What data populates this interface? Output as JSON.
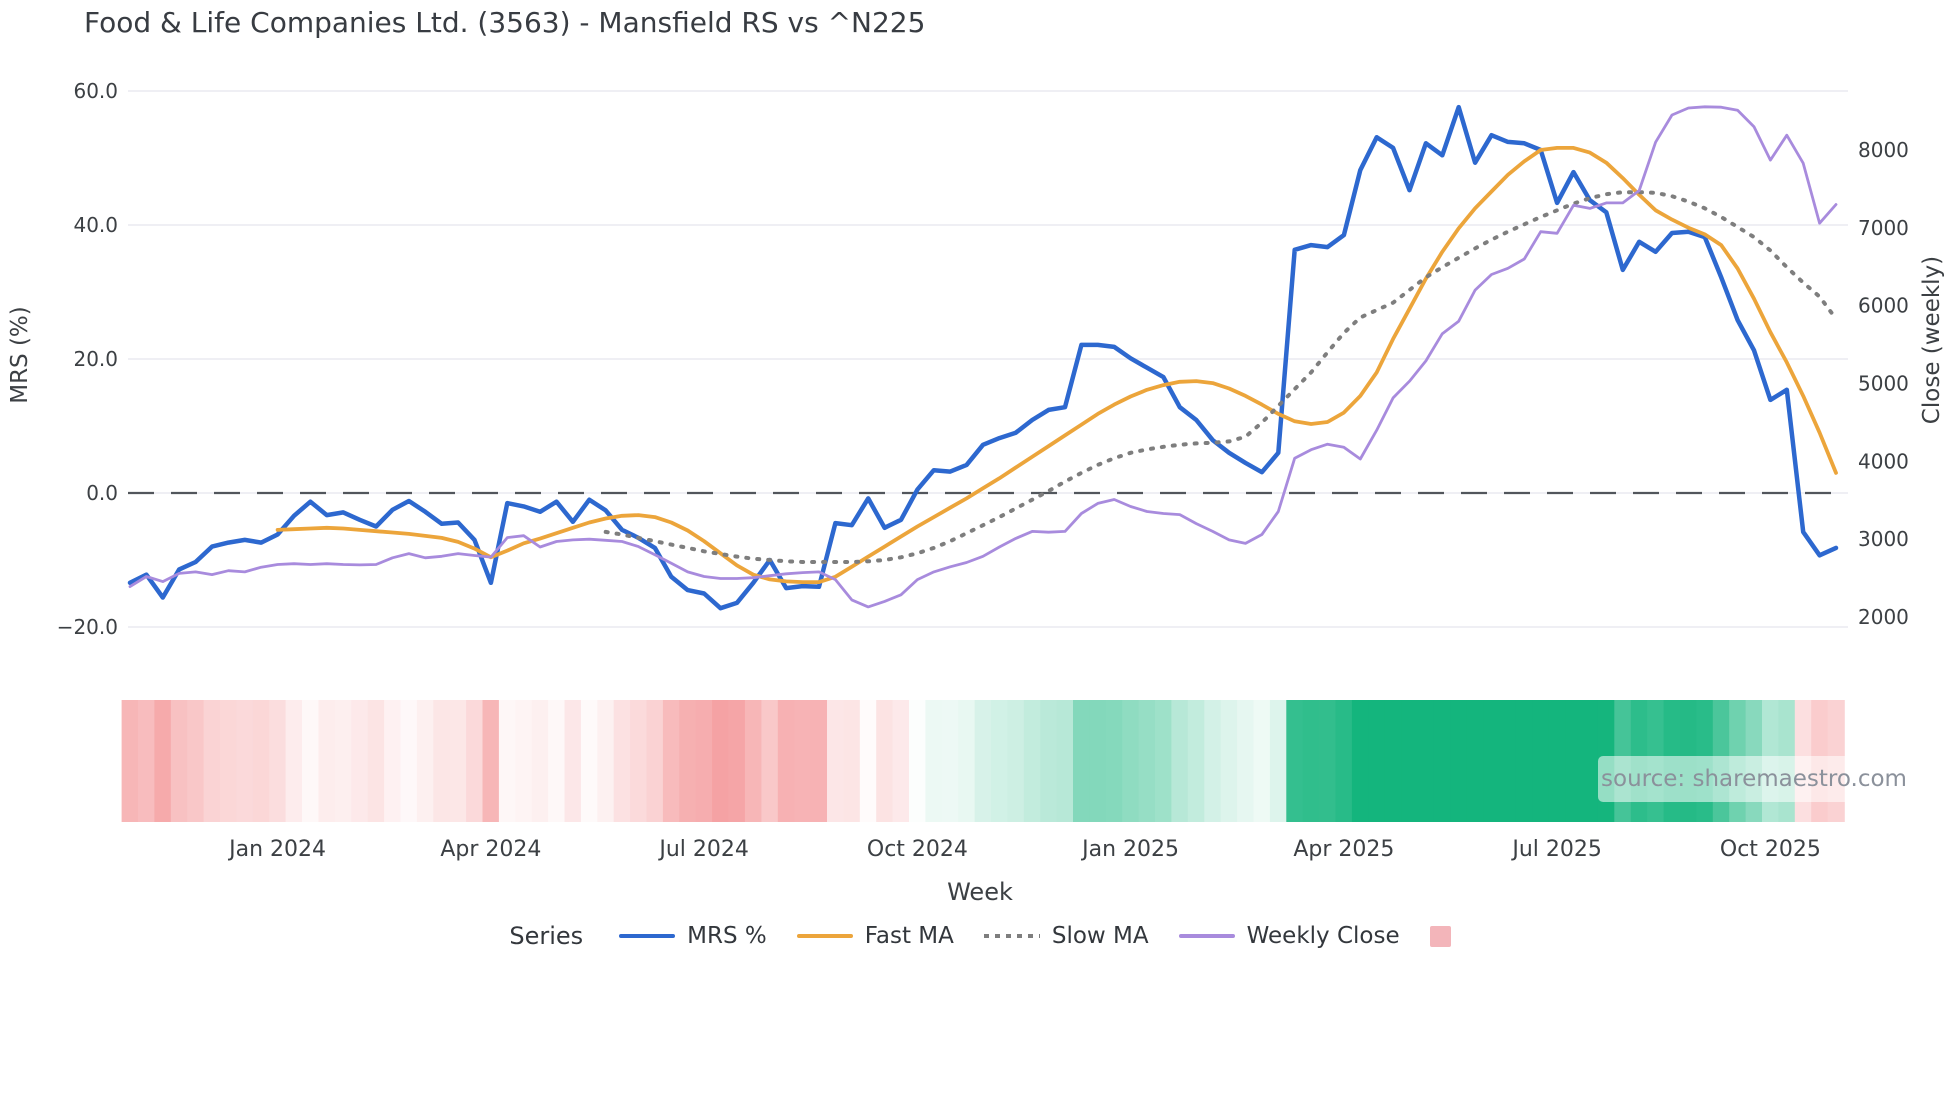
{
  "title": "Food & Life Companies Ltd. (3563) - Mansfield RS vs ^N225",
  "watermark": "source: sharemaestro.com",
  "axes": {
    "y_left": {
      "label": "MRS (%)",
      "ticks": [
        "60.0",
        "40.0",
        "20.0",
        "0.0",
        "−20.0"
      ],
      "tick_values": [
        60,
        40,
        20,
        0,
        -20
      ]
    },
    "y_right": {
      "label": "Close (weekly)",
      "ticks": [
        "8000",
        "7000",
        "6000",
        "5000",
        "4000",
        "3000",
        "2000"
      ],
      "tick_values": [
        8000,
        7000,
        6000,
        5000,
        4000,
        3000,
        2000
      ]
    },
    "x": {
      "label": "Week",
      "ticks": [
        "Jan 2024",
        "Apr 2024",
        "Jul 2024",
        "Oct 2024",
        "Jan 2025",
        "Apr 2025",
        "Jul 2025",
        "Oct 2025"
      ],
      "tick_week_indices": [
        9,
        22,
        35,
        48,
        61,
        74,
        87,
        100
      ]
    }
  },
  "legend": {
    "title": "Series",
    "items": [
      {
        "label": "MRS %",
        "color": "#2d68cf",
        "style": "solid"
      },
      {
        "label": "Fast MA",
        "color": "#eca53b",
        "style": "solid"
      },
      {
        "label": "Slow MA",
        "color": "#7e7e7e",
        "style": "dotted"
      },
      {
        "label": "Weekly Close",
        "color": "#a88bdd",
        "style": "solid"
      },
      {
        "label": "",
        "color": "#f3b5ba",
        "style": "square"
      }
    ]
  },
  "chart_data": {
    "type": "line",
    "x_start_week": "2023-10-30",
    "x_freq": "weekly",
    "n_points": 105,
    "grid": "horizontal-only",
    "y_left_range": [
      -20,
      60
    ],
    "y_right_range": [
      2000,
      8000
    ],
    "zero_reference_line": 0,
    "series": [
      {
        "name": "MRS %",
        "axis": "left",
        "color": "#2d68cf",
        "width": 4.5,
        "dash": "solid",
        "values": [
          -13.4,
          -12.2,
          -15.6,
          -11.4,
          -10.3,
          -8.0,
          -7.4,
          -7.0,
          -7.4,
          -6.2,
          -3.4,
          -1.3,
          -3.3,
          -2.9,
          -4.0,
          -5.0,
          -2.5,
          -1.2,
          -2.8,
          -4.6,
          -4.4,
          -7.0,
          -13.4,
          -1.5,
          -2.0,
          -2.8,
          -1.3,
          -4.3,
          -1.0,
          -2.6,
          -5.5,
          -6.7,
          -8.2,
          -12.5,
          -14.5,
          -15.0,
          -17.2,
          -16.4,
          -13.4,
          -10.0,
          -14.2,
          -13.9,
          -14.0,
          -4.5,
          -4.8,
          -0.8,
          -5.2,
          -4.0,
          0.5,
          3.4,
          3.2,
          4.2,
          7.2,
          8.2,
          9.0,
          10.9,
          12.4,
          12.8,
          22.1,
          22.1,
          21.8,
          20.1,
          18.7,
          17.3,
          12.8,
          10.9,
          7.9,
          6.0,
          4.5,
          3.1,
          6.0,
          36.3,
          37.0,
          36.7,
          38.5,
          48.2,
          53.1,
          51.5,
          45.2,
          52.2,
          50.4,
          57.6,
          49.3,
          53.4,
          52.4,
          52.2,
          51.2,
          43.3,
          47.9,
          43.7,
          41.9,
          33.3,
          37.5,
          36.0,
          38.8,
          39.0,
          38.2,
          32.2,
          25.8,
          21.3,
          13.9,
          15.4,
          -5.8,
          -9.3,
          -8.2
        ]
      },
      {
        "name": "Fast MA",
        "axis": "left",
        "color": "#eca53b",
        "width": 3.8,
        "dash": "solid",
        "values": [
          null,
          null,
          null,
          null,
          null,
          null,
          null,
          null,
          null,
          -5.5,
          -5.4,
          -5.3,
          -5.2,
          -5.3,
          -5.5,
          -5.7,
          -5.9,
          -6.1,
          -6.4,
          -6.7,
          -7.3,
          -8.3,
          -9.6,
          -8.6,
          -7.5,
          -6.8,
          -6.0,
          -5.2,
          -4.4,
          -3.8,
          -3.4,
          -3.3,
          -3.6,
          -4.4,
          -5.6,
          -7.2,
          -9.0,
          -10.8,
          -12.2,
          -12.9,
          -13.2,
          -13.3,
          -13.3,
          -12.5,
          -11.0,
          -9.5,
          -8.0,
          -6.5,
          -5.0,
          -3.6,
          -2.2,
          -0.8,
          0.7,
          2.2,
          3.8,
          5.4,
          7.0,
          8.6,
          10.2,
          11.8,
          13.2,
          14.4,
          15.4,
          16.1,
          16.6,
          16.7,
          16.4,
          15.6,
          14.5,
          13.2,
          11.8,
          10.7,
          10.3,
          10.6,
          12.0,
          14.5,
          18.0,
          23.0,
          27.5,
          32.0,
          36.0,
          39.5,
          42.5,
          45.0,
          47.5,
          49.5,
          51.2,
          51.5,
          51.5,
          50.8,
          49.3,
          47.0,
          44.5,
          42.2,
          40.8,
          39.6,
          38.6,
          37.0,
          33.5,
          29.0,
          24.0,
          19.5,
          14.5,
          9.0,
          3.0
        ]
      },
      {
        "name": "Slow MA",
        "axis": "left",
        "color": "#7e7e7e",
        "width": 4,
        "dash": "dotted",
        "values": [
          null,
          null,
          null,
          null,
          null,
          null,
          null,
          null,
          null,
          null,
          null,
          null,
          null,
          null,
          null,
          null,
          null,
          null,
          null,
          null,
          null,
          null,
          null,
          null,
          null,
          null,
          null,
          null,
          null,
          -5.8,
          -6.2,
          -6.7,
          -7.2,
          -7.7,
          -8.2,
          -8.7,
          -9.1,
          -9.5,
          -9.8,
          -10.0,
          -10.2,
          -10.3,
          -10.3,
          -10.3,
          -10.3,
          -10.2,
          -10.0,
          -9.6,
          -9.0,
          -8.2,
          -7.2,
          -6.0,
          -4.8,
          -3.6,
          -2.3,
          -1.0,
          0.3,
          1.7,
          3.0,
          4.2,
          5.2,
          6.0,
          6.5,
          6.9,
          7.2,
          7.4,
          7.5,
          7.7,
          8.4,
          10.5,
          13.0,
          15.5,
          18.0,
          21.0,
          23.9,
          26.2,
          27.3,
          28.4,
          30.3,
          32.2,
          33.7,
          35.1,
          36.5,
          37.8,
          39.0,
          40.1,
          41.2,
          42.2,
          43.2,
          44.0,
          44.6,
          44.9,
          44.9,
          44.8,
          44.3,
          43.5,
          42.5,
          41.2,
          39.7,
          38.2,
          36.2,
          33.7,
          31.4,
          29.3,
          26.0
        ]
      },
      {
        "name": "Weekly Close",
        "axis": "right",
        "color": "#a88bdd",
        "width": 2.8,
        "dash": "solid",
        "values": [
          2390,
          2520,
          2455,
          2560,
          2580,
          2545,
          2595,
          2580,
          2640,
          2675,
          2685,
          2675,
          2685,
          2675,
          2670,
          2675,
          2760,
          2815,
          2760,
          2780,
          2815,
          2790,
          2770,
          3020,
          3045,
          2900,
          2970,
          2990,
          3000,
          2985,
          2970,
          2905,
          2800,
          2690,
          2580,
          2520,
          2495,
          2495,
          2505,
          2530,
          2555,
          2570,
          2580,
          2480,
          2220,
          2130,
          2200,
          2285,
          2480,
          2580,
          2645,
          2700,
          2780,
          2900,
          3010,
          3100,
          3090,
          3100,
          3330,
          3460,
          3510,
          3420,
          3355,
          3330,
          3315,
          3200,
          3100,
          2990,
          2945,
          3060,
          3355,
          4040,
          4150,
          4220,
          4180,
          4030,
          4400,
          4815,
          5030,
          5290,
          5640,
          5800,
          6200,
          6400,
          6480,
          6600,
          6950,
          6930,
          7290,
          7250,
          7320,
          7320,
          7480,
          8100,
          8450,
          8540,
          8555,
          8550,
          8510,
          8300,
          7870,
          8190,
          7830,
          7060,
          7300
        ]
      }
    ],
    "momentum_band": {
      "description": "weekly strip below chart; color derived from MRS % sign and magnitude",
      "negative_full_color": "#f5a2a4",
      "positive_full_color": "#14b57d",
      "negative_full_scale": 17,
      "positive_full_scale": 42
    },
    "colors": {
      "grid": "#eaeaf0",
      "zero_line": "#52565c",
      "text": "#3c4044"
    }
  }
}
